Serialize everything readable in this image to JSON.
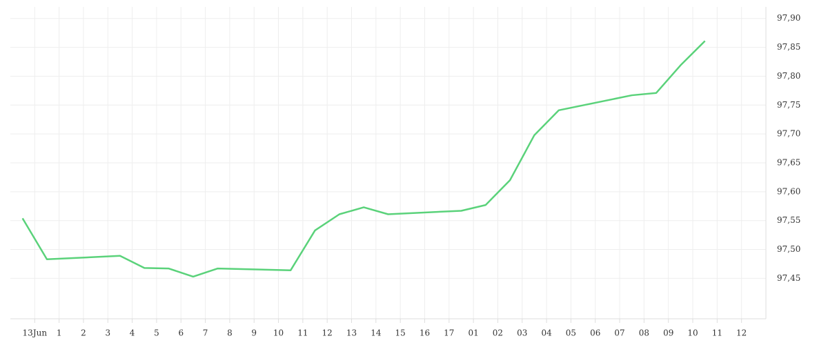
{
  "chart_data": {
    "type": "line",
    "x": [
      -0.5,
      0.5,
      3.5,
      4.5,
      5.5,
      6.5,
      7.5,
      10.5,
      11.5,
      12.5,
      13.5,
      14.5,
      17.5,
      18.5,
      19.5,
      20.5,
      21.5,
      24.5,
      25.5,
      26.5,
      27.5
    ],
    "series": [
      {
        "color": "#5ad27a",
        "values": [
          97.554,
          97.483,
          97.489,
          97.468,
          97.467,
          97.453,
          97.467,
          97.464,
          97.533,
          97.561,
          97.573,
          97.561,
          97.567,
          97.577,
          97.62,
          97.698,
          97.741,
          97.767,
          97.771,
          97.819,
          97.861
        ]
      }
    ],
    "xlim": [
      -1,
      30
    ],
    "xticks": [
      {
        "value": 0,
        "label": "13Jun"
      },
      1,
      2,
      3,
      4,
      5,
      6,
      7,
      8,
      9,
      10,
      11,
      12,
      13,
      14,
      15,
      16,
      17,
      {
        "value": 18,
        "label": "01"
      },
      {
        "value": 19,
        "label": "02"
      },
      {
        "value": 20,
        "label": "03"
      },
      {
        "value": 21,
        "label": "04"
      },
      {
        "value": 22,
        "label": "05"
      },
      {
        "value": 23,
        "label": "06"
      },
      {
        "value": 24,
        "label": "07"
      },
      {
        "value": 25,
        "label": "08"
      },
      {
        "value": 26,
        "label": "09"
      },
      {
        "value": 27,
        "label": "10"
      },
      {
        "value": 28,
        "label": "11"
      },
      {
        "value": 29,
        "label": "12"
      }
    ],
    "ylim": [
      97.38,
      97.92
    ],
    "yticks": [
      {
        "value": 97.45,
        "label": "97,45"
      },
      {
        "value": 97.5,
        "label": "97,50"
      },
      {
        "value": 97.55,
        "label": "97,55"
      },
      {
        "value": 97.6,
        "label": "97,60"
      },
      {
        "value": 97.65,
        "label": "97,65"
      },
      {
        "value": 97.7,
        "label": "97,70"
      },
      {
        "value": 97.75,
        "label": "97,75"
      },
      {
        "value": 97.8,
        "label": "97,80"
      },
      {
        "value": 97.85,
        "label": "97,85"
      },
      {
        "value": 97.9,
        "label": "97,90"
      }
    ],
    "grid": true
  }
}
